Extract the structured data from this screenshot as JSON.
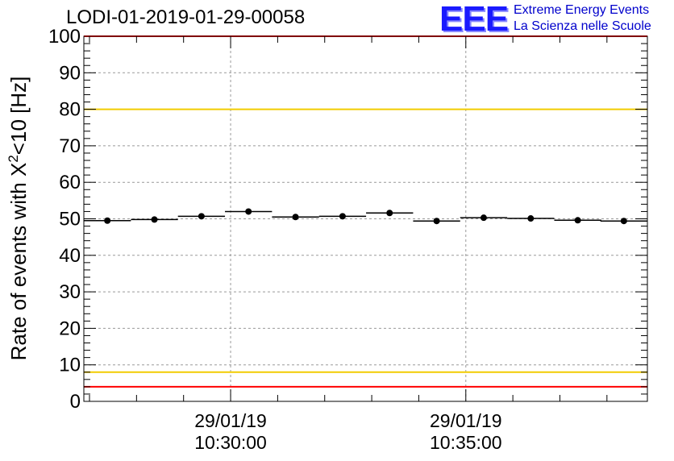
{
  "header": {
    "title": "LODI-01-2019-01-29-00058",
    "logo_text": "EEE",
    "logo_line1": "Extreme Energy Events",
    "logo_line2": "La Scienza nelle Scuole"
  },
  "chart_data": {
    "type": "scatter",
    "title": "LODI-01-2019-01-29-00058",
    "ylabel_main": "Rate of events with X",
    "ylabel_sup": "2",
    "ylabel_tail": "<10 [Hz]",
    "ylim": [
      0,
      100
    ],
    "yticks": [
      0,
      10,
      20,
      30,
      40,
      50,
      60,
      70,
      80,
      90,
      100
    ],
    "grid": true,
    "x_unit": "minutes after 10:30:00",
    "xlim": [
      -3.12,
      8.86
    ],
    "xticks": [
      {
        "value": 0,
        "date": "29/01/19",
        "time": "10:30:00"
      },
      {
        "value": 5,
        "date": "29/01/19",
        "time": "10:35:00"
      }
    ],
    "bin_width": 1.0,
    "x": [
      -2.62,
      -1.62,
      -0.62,
      0.38,
      1.38,
      2.38,
      3.38,
      4.38,
      5.38,
      6.38,
      7.38,
      8.36
    ],
    "values": [
      49.5,
      49.8,
      50.7,
      52.0,
      50.5,
      50.7,
      51.6,
      49.4,
      50.3,
      50.1,
      49.6,
      49.4
    ],
    "reference_lines": [
      {
        "value": 4,
        "color": "#ff0000"
      },
      {
        "value": 8,
        "color": "#f2cc00"
      },
      {
        "value": 80,
        "color": "#f2cc00"
      },
      {
        "value": 100,
        "color": "#ff0000"
      }
    ],
    "marker_color": "#000000"
  }
}
